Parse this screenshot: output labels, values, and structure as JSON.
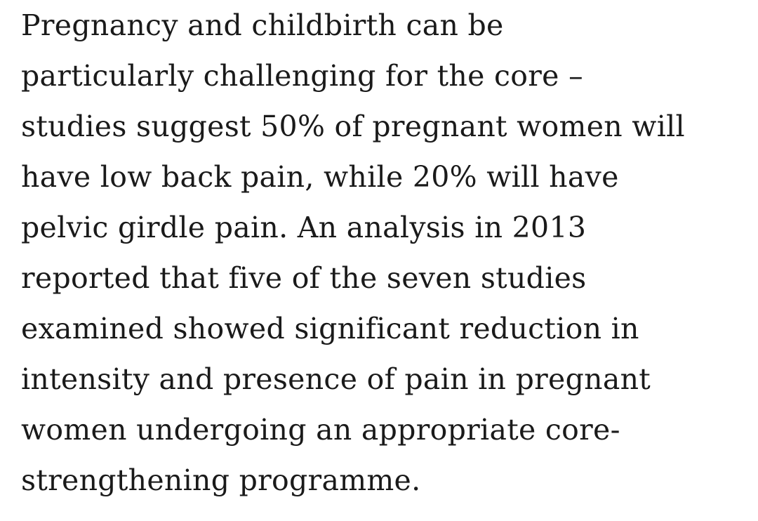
{
  "paragraph": {
    "lines": [
      "Pregnancy and childbirth can be",
      "particularly challenging for the core –",
      "studies suggest 50% of pregnant women will",
      "have low back pain, while 20% will have",
      "pelvic girdle pain. An analysis in 2013",
      "reported that five of the seven studies",
      "examined showed significant reduction in",
      "intensity and presence of pain in pregnant",
      "women undergoing an appropriate core-",
      "strengthening programme."
    ]
  }
}
